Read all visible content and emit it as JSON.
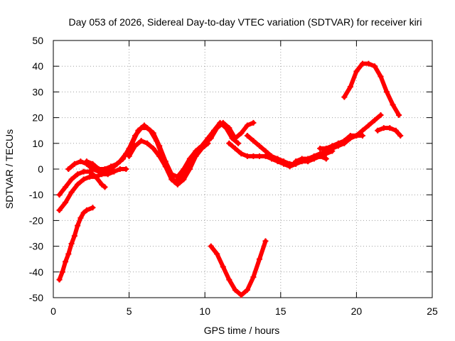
{
  "chart_data": {
    "type": "scatter",
    "title": "Day 053 of 2026, Sidereal Day-to-day VTEC variation (SDTVAR) for receiver kiri",
    "xlabel": "GPS time / hours",
    "ylabel": "SDTVAR / TECUs",
    "xlim": [
      0,
      25
    ],
    "ylim": [
      -50,
      50
    ],
    "xticks": [
      0,
      5,
      10,
      15,
      20,
      25
    ],
    "yticks": [
      -50,
      -40,
      -30,
      -20,
      -10,
      0,
      10,
      20,
      30,
      40,
      50
    ],
    "xtick_labels": [
      "0",
      "5",
      "10",
      "15",
      "20",
      "25"
    ],
    "ytick_labels": [
      "-50",
      "-40",
      "-30",
      "-20",
      "-10",
      "0",
      "10",
      "20",
      "30",
      "40",
      "50"
    ],
    "grid": true,
    "legend": "none",
    "marker_color": "#ff0000",
    "series": [
      {
        "name": "s1",
        "x": [
          0.4,
          0.6,
          0.8,
          1.0,
          1.2,
          1.4,
          1.6,
          1.8,
          2.0,
          2.2,
          2.6
        ],
        "y": [
          -43,
          -40,
          -36,
          -33,
          -29,
          -26,
          -22,
          -19,
          -17,
          -16,
          -15
        ]
      },
      {
        "name": "s2",
        "x": [
          0.4,
          0.8,
          1.2,
          1.6,
          2.0,
          2.4,
          2.8,
          3.2,
          3.6,
          4.0,
          4.4,
          4.8
        ],
        "y": [
          -16,
          -13,
          -9,
          -6,
          -4,
          -3,
          -3,
          -2,
          -2,
          -1,
          0,
          0
        ]
      },
      {
        "name": "s3",
        "x": [
          0.4,
          0.8,
          1.2,
          1.6,
          2.0,
          2.4,
          2.8,
          3.2,
          3.4
        ],
        "y": [
          -10,
          -7,
          -4,
          -2,
          -1,
          -1,
          -3,
          -6,
          -7
        ]
      },
      {
        "name": "s4",
        "x": [
          1.0,
          1.4,
          1.8,
          2.2,
          2.6,
          3.0,
          3.4
        ],
        "y": [
          0,
          2,
          3,
          2,
          0,
          -1,
          -1
        ]
      },
      {
        "name": "s5",
        "x": [
          2.2,
          2.6,
          3.0,
          3.4,
          3.8,
          4.2,
          4.6,
          5.0,
          5.4,
          5.8,
          6.2,
          6.6,
          7.0,
          7.4,
          7.8,
          8.2,
          8.6,
          9.0,
          9.4,
          9.8,
          10.2,
          10.6,
          11.0,
          11.4,
          11.8,
          12.2
        ],
        "y": [
          3,
          2,
          0,
          0,
          1,
          2,
          4,
          8,
          13,
          16,
          16,
          14,
          9,
          3,
          -2,
          -3,
          0,
          4,
          7,
          9,
          12,
          15,
          18,
          16,
          12,
          10
        ]
      },
      {
        "name": "s6",
        "x": [
          3.6,
          4.0,
          4.4,
          4.8,
          5.2,
          5.6,
          6.0,
          6.4,
          6.8,
          7.2,
          7.6,
          8.0,
          8.4,
          8.8,
          9.2,
          9.6,
          10.0,
          10.4,
          10.8,
          11.2,
          11.6,
          12.0,
          12.4,
          12.8,
          13.2
        ],
        "y": [
          -1,
          1,
          3,
          6,
          10,
          15,
          17,
          15,
          11,
          5,
          -1,
          -5,
          -3,
          1,
          5,
          8,
          10,
          12,
          16,
          18,
          16,
          12,
          14,
          17,
          18
        ]
      },
      {
        "name": "s7",
        "x": [
          5.0,
          5.4,
          5.8,
          6.2,
          6.6,
          7.0,
          7.4,
          7.8,
          8.2,
          8.6,
          9.0,
          9.4,
          9.8,
          10.2
        ],
        "y": [
          5,
          9,
          11,
          10,
          8,
          5,
          1,
          -4,
          -6,
          -4,
          0,
          5,
          8,
          10
        ]
      },
      {
        "name": "s8",
        "x": [
          10.4,
          10.8,
          11.2,
          11.6,
          12.0,
          12.4,
          12.8,
          13.2,
          13.6,
          14.0
        ],
        "y": [
          -30,
          -33,
          -38,
          -43,
          -47,
          -49,
          -47,
          -42,
          -35,
          -28
        ]
      },
      {
        "name": "s9",
        "x": [
          11.6,
          12.0,
          12.4,
          12.8,
          13.2,
          13.6,
          14.0,
          14.4,
          14.8,
          15.2,
          15.6,
          16.0,
          16.4,
          16.8,
          17.2,
          17.6,
          18.0,
          18.4
        ],
        "y": [
          10,
          8,
          6,
          5,
          5,
          5,
          5,
          4,
          3,
          2,
          1,
          2,
          3,
          3,
          4,
          5,
          6,
          7
        ]
      },
      {
        "name": "s10",
        "x": [
          12.8,
          13.2,
          13.6,
          14.0,
          14.4,
          14.8,
          15.2,
          15.6,
          16.0,
          16.4,
          16.8,
          17.2,
          17.6,
          18.0
        ],
        "y": [
          13,
          11,
          9,
          7,
          5,
          4,
          3,
          2,
          2,
          3,
          3,
          4,
          5,
          4
        ]
      },
      {
        "name": "s11",
        "x": [
          16.0,
          16.4,
          16.8,
          17.2,
          17.6,
          18.0,
          18.4,
          18.8,
          19.2,
          19.6,
          20.0,
          20.4,
          20.8,
          21.2,
          21.6
        ],
        "y": [
          3,
          4,
          4,
          5,
          6,
          7,
          8,
          9,
          10,
          12,
          13,
          15,
          17,
          19,
          21
        ]
      },
      {
        "name": "s12",
        "x": [
          17.6,
          18.0,
          18.4,
          18.8,
          19.2,
          19.6,
          20.0,
          20.4
        ],
        "y": [
          8,
          8,
          9,
          10,
          11,
          13,
          13,
          13
        ]
      },
      {
        "name": "s13",
        "x": [
          19.2,
          19.6,
          20.0,
          20.4,
          20.8,
          21.2,
          21.6,
          22.0,
          22.4,
          22.8
        ],
        "y": [
          28,
          32,
          38,
          41,
          41,
          40,
          36,
          30,
          25,
          21
        ]
      },
      {
        "name": "s14",
        "x": [
          21.4,
          21.8,
          22.2,
          22.6,
          22.9
        ],
        "y": [
          15,
          16,
          16,
          15,
          13
        ]
      }
    ]
  }
}
